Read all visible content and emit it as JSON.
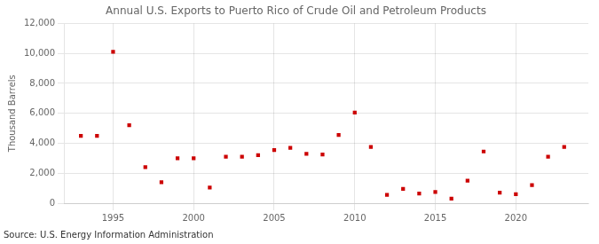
{
  "chart_data": {
    "type": "scatter",
    "title": "Annual U.S. Exports to Puerto Rico of Crude Oil and Petroleum Products",
    "ylabel": "Thousand Barrels",
    "annotation": "Source: U.S. Energy Information Administration",
    "x": [
      1993,
      1994,
      1995,
      1996,
      1997,
      1998,
      1999,
      2000,
      2001,
      2002,
      2003,
      2004,
      2005,
      2006,
      2007,
      2008,
      2009,
      2010,
      2011,
      2012,
      2013,
      2014,
      2015,
      2016,
      2017,
      2018,
      2019,
      2020,
      2021,
      2022,
      2023
    ],
    "values": [
      4500,
      4500,
      10100,
      5200,
      2400,
      1400,
      3000,
      3000,
      1050,
      3100,
      3100,
      3200,
      3550,
      3700,
      3300,
      3250,
      4550,
      6050,
      3750,
      550,
      950,
      650,
      750,
      300,
      1500,
      3450,
      700,
      600,
      1200,
      3100,
      3750
    ],
    "color": "#cc0000",
    "marker": "square",
    "xlim": [
      1992,
      2024.5
    ],
    "xticks": [
      1995,
      2000,
      2005,
      2010,
      2015,
      2020
    ],
    "ylim": [
      0,
      12000
    ],
    "yticks": [
      0,
      {
        "value": 2000,
        "label": "2,000"
      },
      {
        "value": 4000,
        "label": "4,000"
      },
      {
        "value": 6000,
        "label": "6,000"
      },
      {
        "value": 8000,
        "label": "8,000"
      },
      {
        "value": 10000,
        "label": "10,000"
      },
      {
        "value": 12000,
        "label": "12,000"
      }
    ],
    "grid": true
  }
}
